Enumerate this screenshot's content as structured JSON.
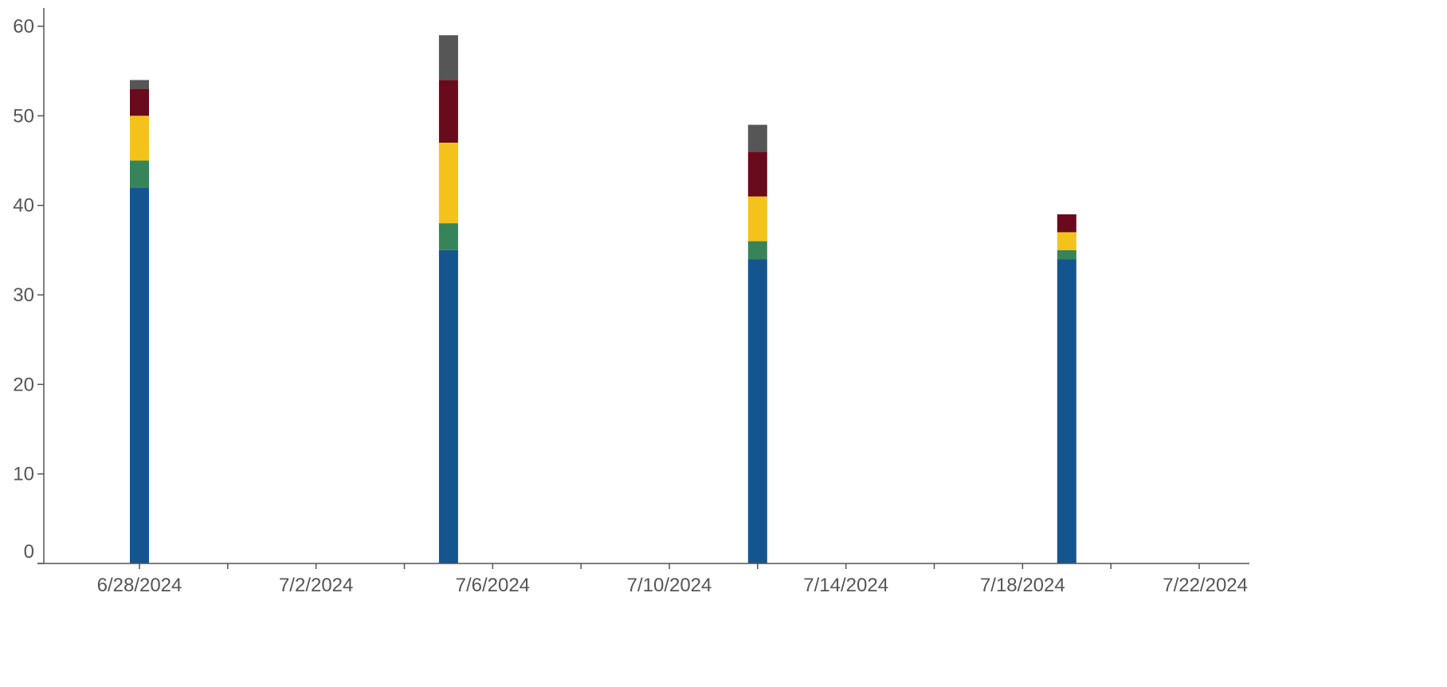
{
  "colors": {
    "axis": "#555555",
    "tick_text": "#555555",
    "background": "#ffffff"
  },
  "chart_data": {
    "type": "bar",
    "stacked": true,
    "title": "",
    "xlabel": "",
    "ylabel": "",
    "x_axis": {
      "tick_labels": [
        "6/28/2024",
        "7/2/2024",
        "7/6/2024",
        "7/10/2024",
        "7/14/2024",
        "7/18/2024",
        "7/22/2024"
      ],
      "range": [
        "6/27/2024",
        "7/23/2024"
      ]
    },
    "ylim": [
      0,
      62
    ],
    "y_ticks": [
      0,
      10,
      20,
      30,
      40,
      50,
      60
    ],
    "grid": false,
    "legend": "none",
    "categories": [
      "6/28/2024",
      "7/5/2024",
      "7/12/2024",
      "7/19/2024"
    ],
    "series": [
      {
        "color": "#15558f",
        "values": [
          42,
          35,
          34,
          34
        ]
      },
      {
        "color": "#38845a",
        "values": [
          3,
          3,
          2,
          1
        ]
      },
      {
        "color": "#f3c31b",
        "values": [
          5,
          9,
          5,
          2
        ]
      },
      {
        "color": "#6a0b1d",
        "values": [
          3,
          7,
          5,
          2
        ]
      },
      {
        "color": "#565656",
        "values": [
          1,
          5,
          3,
          0
        ]
      }
    ]
  }
}
